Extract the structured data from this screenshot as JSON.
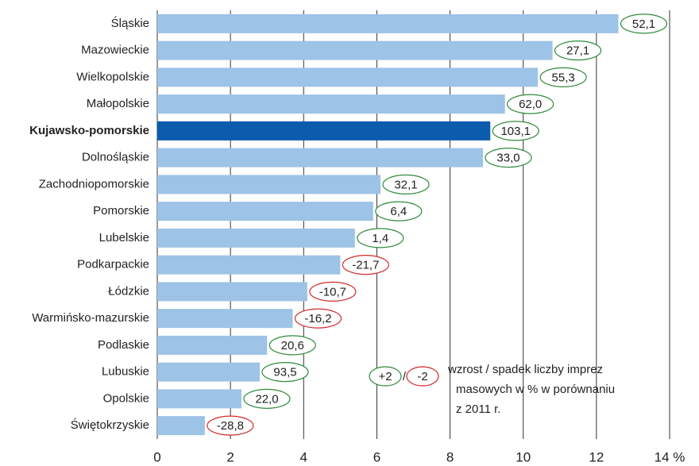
{
  "chart_data": {
    "type": "bar",
    "orientation": "horizontal",
    "categories": [
      "Śląskie",
      "Mazowieckie",
      "Wielkopolskie",
      "Małopolskie",
      "Kujawsko-pomorskie",
      "Dolnośląskie",
      "Zachodniopomorskie",
      "Pomorskie",
      "Lubelskie",
      "Podkarpackie",
      "Łódzkie",
      "Warmińsko-mazurskie",
      "Podlaskie",
      "Lubuskie",
      "Opolskie",
      "Świętokrzyskie"
    ],
    "values": [
      12.6,
      10.8,
      10.4,
      9.5,
      9.1,
      8.9,
      6.1,
      5.9,
      5.4,
      5.0,
      4.1,
      3.7,
      3.0,
      2.8,
      2.3,
      1.3
    ],
    "changes": [
      52.1,
      27.1,
      55.3,
      62.0,
      103.1,
      33.0,
      32.1,
      6.4,
      1.4,
      -21.7,
      -10.7,
      -16.2,
      20.6,
      93.5,
      22.0,
      -28.8
    ],
    "change_labels": [
      "52,1",
      "27,1",
      "55,3",
      "62,0",
      "103,1",
      "33,0",
      "32,1",
      "6,4",
      "1,4",
      "-21,7",
      "-10,7",
      "-16,2",
      "20,6",
      "93,5",
      "22,0",
      "-28,8"
    ],
    "color": "#9dc3e6",
    "highlight": "Kujawsko-pomorskie",
    "highlight_color": "#0b5cad",
    "positive_color": "#2e8b3a",
    "negative_color": "#d32a2a",
    "xlim": [
      0,
      14
    ],
    "xticks": [
      0,
      2,
      4,
      6,
      8,
      10,
      12,
      {
        "value": 14,
        "label": "14 %"
      }
    ],
    "grid": true,
    "legend": {
      "positive": "+2",
      "separator": "/",
      "negative": "-2",
      "text": [
        "wzrost / spadek liczby imprez",
        "masowych w % w porównaniu",
        "z 2011 r."
      ]
    }
  }
}
